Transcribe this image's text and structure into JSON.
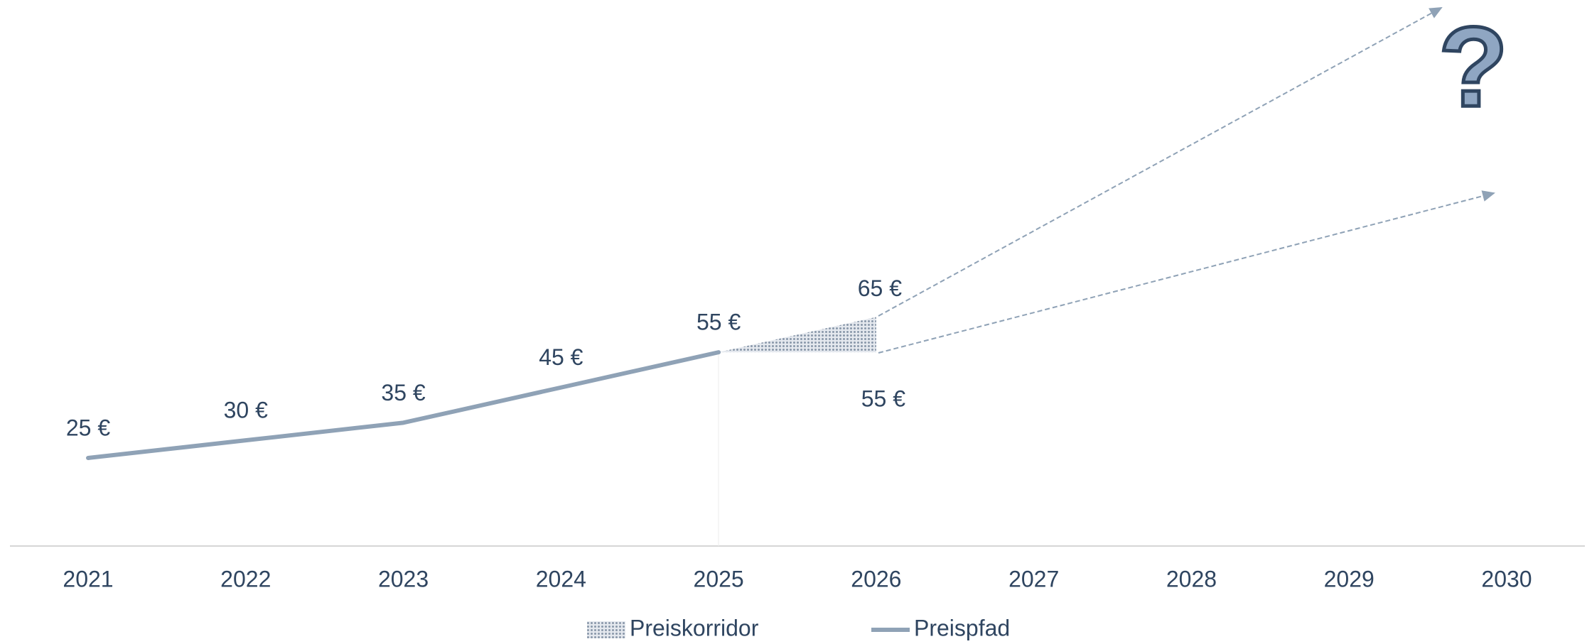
{
  "chart_data": {
    "type": "line",
    "categories": [
      "2021",
      "2022",
      "2023",
      "2024",
      "2025",
      "2026",
      "2027",
      "2028",
      "2029",
      "2030"
    ],
    "ylim": [
      0,
      155
    ],
    "annotation": "?",
    "series": [
      {
        "name": "Preiskorridor",
        "type": "area",
        "color": "#9aa8b8",
        "values": [
          null,
          null,
          null,
          null,
          55,
          65,
          null,
          null,
          null,
          null
        ],
        "lower": [
          null,
          null,
          null,
          null,
          55,
          55,
          null,
          null,
          null,
          null
        ],
        "value_labels": [
          null,
          null,
          null,
          null,
          null,
          "65 €",
          null,
          null,
          null,
          null
        ],
        "lower_labels": [
          null,
          null,
          null,
          null,
          null,
          "55 €",
          null,
          null,
          null,
          null
        ]
      },
      {
        "name": "Preispfad",
        "type": "line",
        "color": "#8fa2b6",
        "values": [
          25,
          30,
          35,
          45,
          55,
          null,
          null,
          null,
          null,
          null
        ],
        "value_labels": [
          "25 €",
          "30 €",
          "35 €",
          "45 €",
          "55 €",
          null,
          null,
          null,
          null,
          null
        ]
      }
    ]
  }
}
